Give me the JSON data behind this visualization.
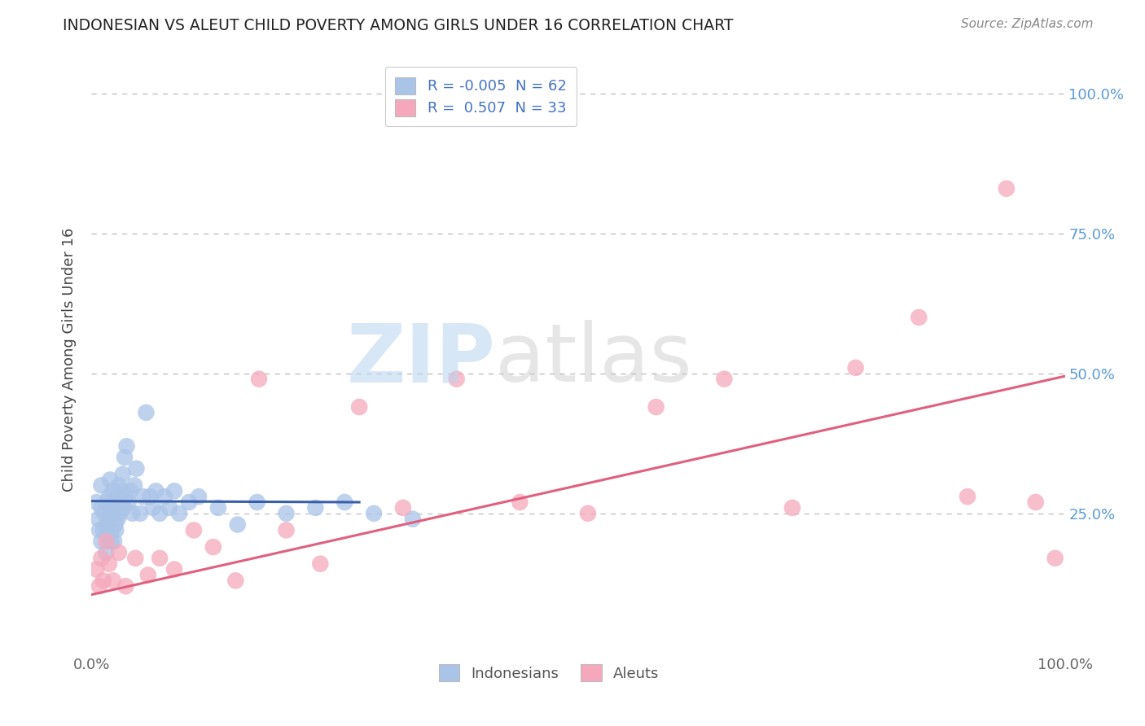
{
  "title": "INDONESIAN VS ALEUT CHILD POVERTY AMONG GIRLS UNDER 16 CORRELATION CHART",
  "source": "Source: ZipAtlas.com",
  "ylabel": "Child Poverty Among Girls Under 16",
  "xlim": [
    0,
    1
  ],
  "ylim": [
    0,
    1.05
  ],
  "ytick_values": [
    0.25,
    0.5,
    0.75,
    1.0
  ],
  "ytick_labels": [
    "25.0%",
    "50.0%",
    "75.0%",
    "100.0%"
  ],
  "indonesian_color": "#aac4e8",
  "aleut_color": "#f5a8bc",
  "indonesian_line_color": "#3a5fa8",
  "aleut_line_color": "#e06080",
  "legend_r1": "-0.005",
  "legend_n1": "62",
  "legend_r2": "0.507",
  "legend_n2": "33",
  "ind_x": [
    0.005,
    0.007,
    0.008,
    0.01,
    0.01,
    0.01,
    0.012,
    0.013,
    0.015,
    0.015,
    0.015,
    0.016,
    0.018,
    0.018,
    0.019,
    0.02,
    0.02,
    0.021,
    0.022,
    0.022,
    0.023,
    0.024,
    0.024,
    0.025,
    0.025,
    0.026,
    0.027,
    0.028,
    0.029,
    0.03,
    0.031,
    0.032,
    0.033,
    0.034,
    0.035,
    0.036,
    0.038,
    0.04,
    0.042,
    0.044,
    0.046,
    0.05,
    0.053,
    0.056,
    0.06,
    0.063,
    0.066,
    0.07,
    0.075,
    0.08,
    0.085,
    0.09,
    0.1,
    0.11,
    0.13,
    0.15,
    0.17,
    0.2,
    0.23,
    0.26,
    0.29,
    0.33
  ],
  "ind_y": [
    0.27,
    0.24,
    0.22,
    0.2,
    0.26,
    0.3,
    0.22,
    0.25,
    0.18,
    0.23,
    0.27,
    0.21,
    0.24,
    0.28,
    0.31,
    0.2,
    0.26,
    0.22,
    0.25,
    0.29,
    0.2,
    0.23,
    0.27,
    0.22,
    0.26,
    0.28,
    0.24,
    0.3,
    0.25,
    0.27,
    0.29,
    0.32,
    0.26,
    0.35,
    0.28,
    0.37,
    0.27,
    0.29,
    0.25,
    0.3,
    0.33,
    0.25,
    0.28,
    0.43,
    0.28,
    0.26,
    0.29,
    0.25,
    0.28,
    0.26,
    0.29,
    0.25,
    0.27,
    0.28,
    0.26,
    0.23,
    0.27,
    0.25,
    0.26,
    0.27,
    0.25,
    0.24
  ],
  "al_x": [
    0.005,
    0.008,
    0.01,
    0.012,
    0.015,
    0.018,
    0.022,
    0.028,
    0.035,
    0.045,
    0.058,
    0.07,
    0.085,
    0.105,
    0.125,
    0.148,
    0.172,
    0.2,
    0.235,
    0.275,
    0.32,
    0.375,
    0.44,
    0.51,
    0.58,
    0.65,
    0.72,
    0.785,
    0.85,
    0.9,
    0.94,
    0.97,
    0.99
  ],
  "al_y": [
    0.15,
    0.12,
    0.17,
    0.13,
    0.2,
    0.16,
    0.13,
    0.18,
    0.12,
    0.17,
    0.14,
    0.17,
    0.15,
    0.22,
    0.19,
    0.13,
    0.49,
    0.22,
    0.16,
    0.44,
    0.26,
    0.49,
    0.27,
    0.25,
    0.44,
    0.49,
    0.26,
    0.51,
    0.6,
    0.28,
    0.83,
    0.27,
    0.17
  ],
  "ind_line_x": [
    0.0,
    0.275
  ],
  "ind_line_y_start": 0.272,
  "ind_line_y_end": 0.27,
  "al_line_x": [
    0.0,
    1.0
  ],
  "al_line_y_start": 0.105,
  "al_line_y_end": 0.495,
  "background_color": "#ffffff"
}
